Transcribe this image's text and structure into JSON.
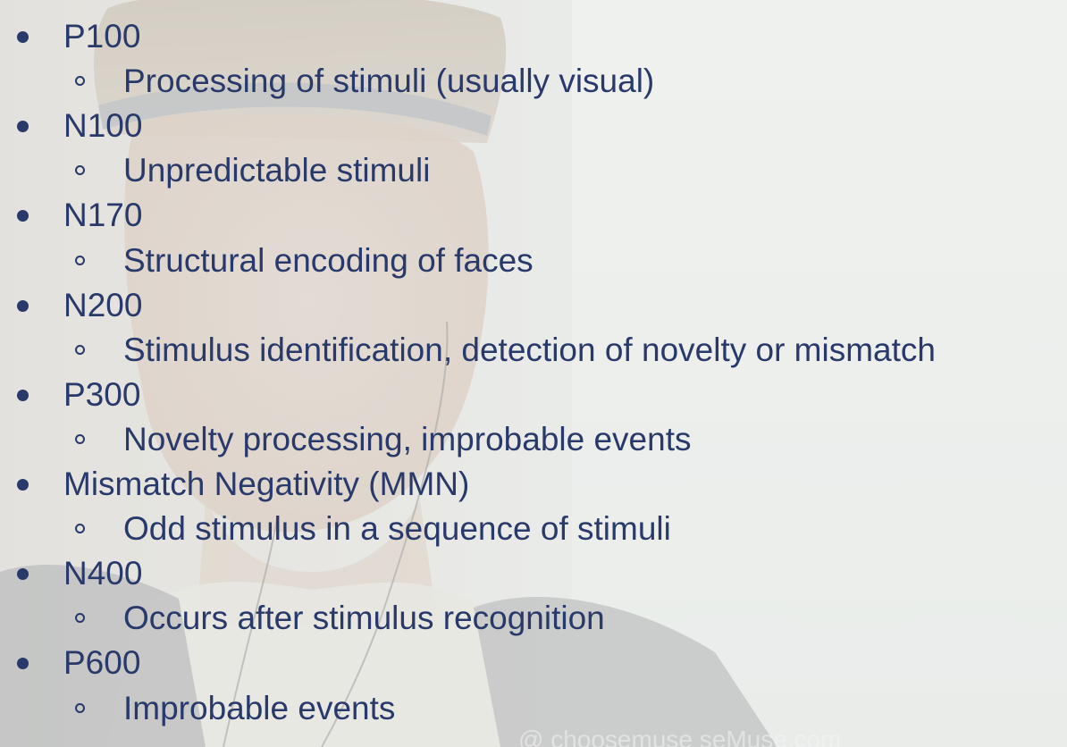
{
  "slide": {
    "items": [
      {
        "level": 1,
        "label": "P100"
      },
      {
        "level": 2,
        "label": "Processing of stimuli (usually visual)"
      },
      {
        "level": 1,
        "label": "N100"
      },
      {
        "level": 2,
        "label": "Unpredictable stimuli"
      },
      {
        "level": 1,
        "label": "N170"
      },
      {
        "level": 2,
        "label": "Structural encoding of faces"
      },
      {
        "level": 1,
        "label": "N200"
      },
      {
        "level": 2,
        "label": "Stimulus identification, detection of novelty or mismatch"
      },
      {
        "level": 1,
        "label": "P300"
      },
      {
        "level": 2,
        "label": "Novelty processing, improbable events"
      },
      {
        "level": 1,
        "label": "Mismatch Negativity (MMN)"
      },
      {
        "level": 2,
        "label": "Odd stimulus in a sequence of stimuli"
      },
      {
        "level": 1,
        "label": "N400"
      },
      {
        "level": 2,
        "label": "Occurs after stimulus recognition"
      },
      {
        "level": 1,
        "label": "P600"
      },
      {
        "level": 2,
        "label": "Improbable events"
      }
    ],
    "text_color": "#28396a"
  },
  "watermark": {
    "text": "@ choosemuse         seMuse.com"
  }
}
